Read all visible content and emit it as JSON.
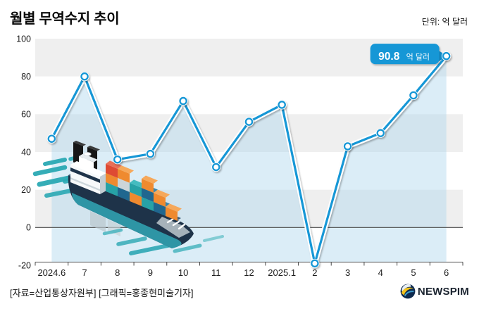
{
  "header": {
    "title": "월별 무역수지 추이",
    "unit": "단위: 억 달러"
  },
  "annotation": {
    "value": "90.8",
    "unit": "억 달러"
  },
  "footer": {
    "credit": "[자료=산업통상자원부] [그래픽=홍종현미술기자]",
    "logo_text": "NEWSPIM"
  },
  "icons": {
    "ship": "cargo-ship-illustration",
    "logo": "newspim-logo-icon"
  },
  "colors": {
    "accent": "#1697d6",
    "band": "#efefef",
    "area_fill": "#a9d4ec",
    "zero_line": "#4b4b4b",
    "axis": "#4b4b4b",
    "tick_text": "#1c1c1c",
    "bubble": "#1697d6",
    "ship_teal": "#2ba9b4"
  },
  "chart_data": {
    "type": "line",
    "title": "월별 무역수지 추이",
    "unit_label": "단위: 억 달러",
    "xlabel": "",
    "ylabel": "억 달러",
    "categories": [
      "2024.6",
      "7",
      "8",
      "9",
      "10",
      "11",
      "12",
      "2025.1",
      "2",
      "3",
      "4",
      "5",
      "6"
    ],
    "values": [
      47,
      80,
      36,
      39,
      67,
      32,
      56,
      65,
      -19,
      43,
      50,
      70,
      90.8
    ],
    "ylim": [
      -20,
      100
    ],
    "yticks": [
      100,
      80,
      60,
      40,
      20,
      0,
      -20
    ],
    "grid": "alternating-horizontal-bands",
    "legend_position": "none",
    "last_point_label": "90.8 억 달러"
  }
}
